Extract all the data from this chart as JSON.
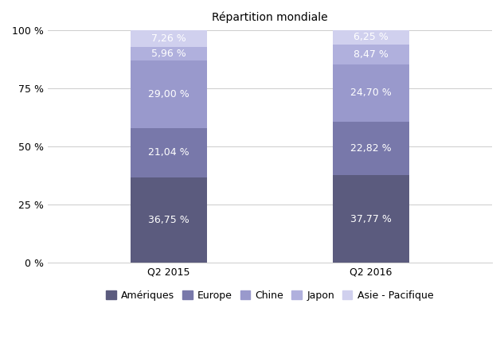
{
  "title": "Répartition mondiale",
  "categories": [
    "Q2 2015",
    "Q2 2016"
  ],
  "segments": [
    {
      "label": "Amériques",
      "values": [
        36.75,
        37.77
      ],
      "color": "#5b5b7e"
    },
    {
      "label": "Europe",
      "values": [
        21.04,
        22.82
      ],
      "color": "#7878aa"
    },
    {
      "label": "Chine",
      "values": [
        29.0,
        24.7
      ],
      "color": "#9999cc"
    },
    {
      "label": "Japon",
      "values": [
        5.96,
        8.47
      ],
      "color": "#b0b0dd"
    },
    {
      "label": "Asie - Pacifique",
      "values": [
        7.26,
        6.25
      ],
      "color": "#d0d0ee"
    }
  ],
  "bar_width": 0.38,
  "bar_positions": [
    1,
    2
  ],
  "xlim": [
    0.4,
    2.6
  ],
  "ylim": [
    0,
    100
  ],
  "yticks": [
    0,
    25,
    50,
    75,
    100
  ],
  "ytick_labels": [
    "0 %",
    "25 %",
    "50 %",
    "75 %",
    "100 %"
  ],
  "label_color": "white",
  "label_fontsize": 9,
  "title_fontsize": 10,
  "legend_fontsize": 9,
  "background_color": "#ffffff",
  "grid_color": "#cccccc"
}
